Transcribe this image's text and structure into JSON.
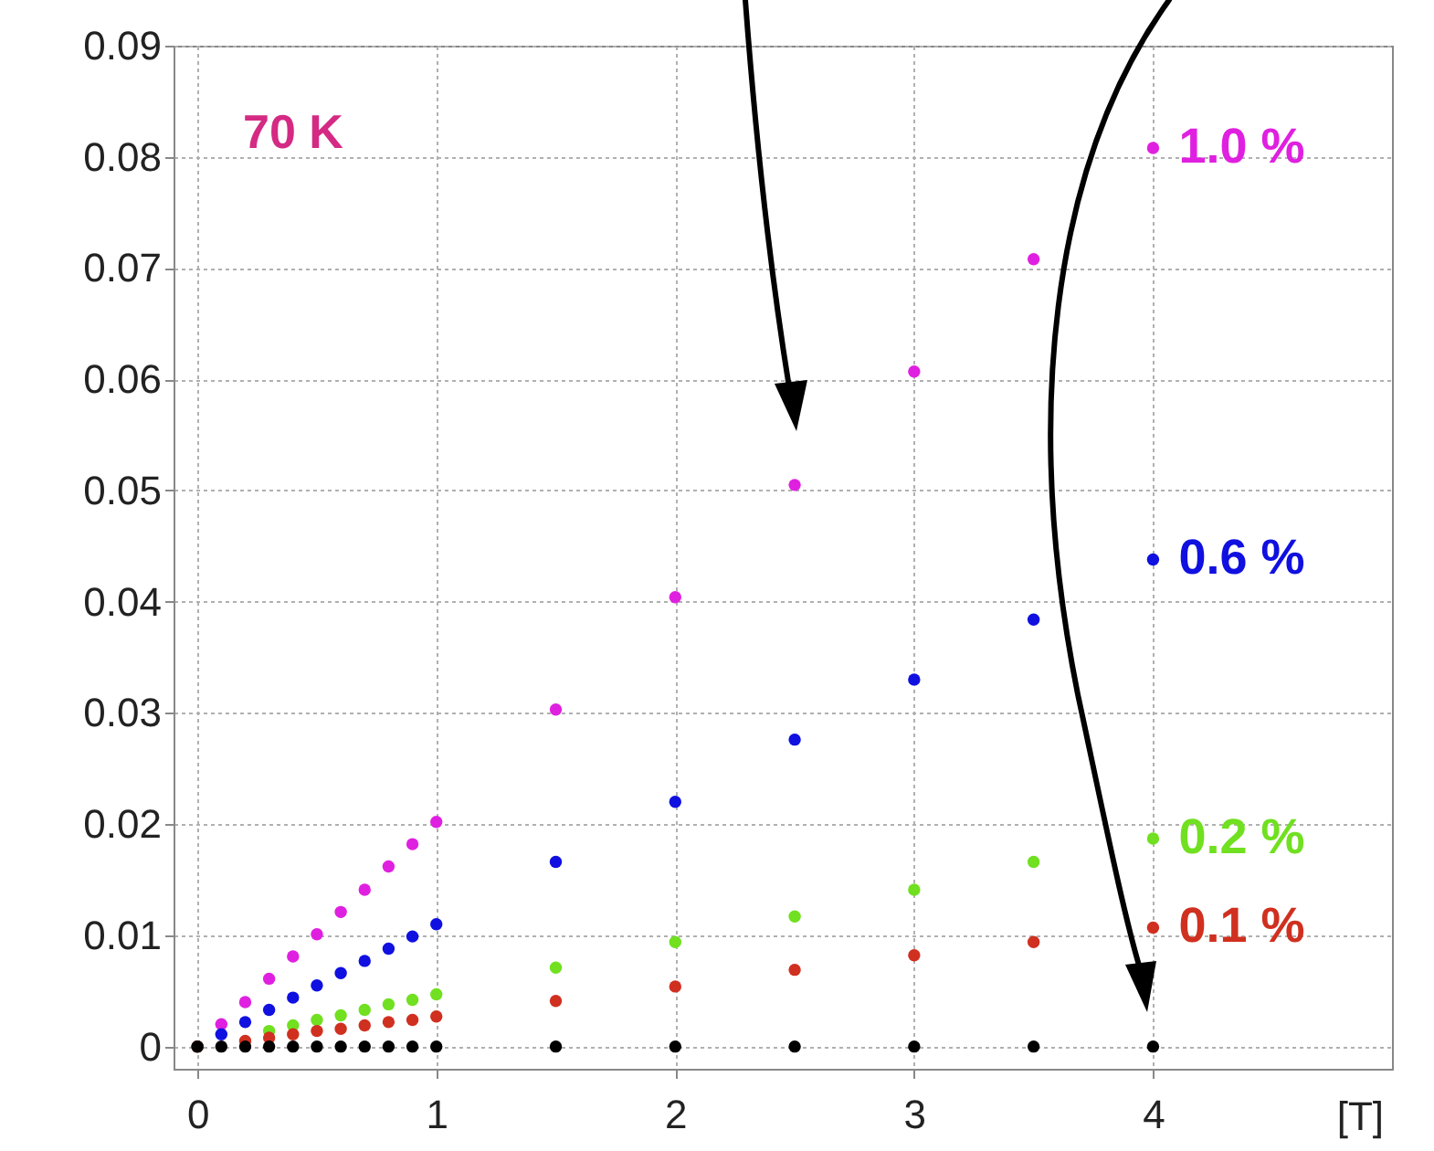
{
  "chart_data": {
    "type": "scatter",
    "xlabel": "[T]",
    "annotations": [
      "70 K"
    ],
    "x": [
      0,
      0.1,
      0.2,
      0.3,
      0.4,
      0.5,
      0.6,
      0.7,
      0.8,
      0.9,
      1,
      1.5,
      2,
      2.5,
      3,
      3.5,
      4
    ],
    "xlim": [
      -0.1,
      5
    ],
    "xticks": [
      0,
      1,
      2,
      3,
      4
    ],
    "ylim": [
      -0.002,
      0.09
    ],
    "yticks": [
      0,
      0.01,
      0.02,
      0.03,
      0.04,
      0.05,
      0.06,
      0.07,
      0.08,
      0.09
    ],
    "grid": true,
    "legend": false,
    "marker": "circle",
    "series": [
      {
        "name": "1.0 %",
        "color": "#e020e0",
        "values": [
          0,
          0.002,
          0.004,
          0.0061,
          0.0081,
          0.0101,
          0.0121,
          0.0141,
          0.0162,
          0.0182,
          0.0202,
          0.0303,
          0.0404,
          0.0505,
          0.0607,
          0.0708,
          0.0808
        ]
      },
      {
        "name": "0.6 %",
        "color": "#1010e0",
        "values": [
          0,
          0.0011,
          0.0022,
          0.0033,
          0.0044,
          0.0055,
          0.0066,
          0.0077,
          0.0088,
          0.0099,
          0.011,
          0.0166,
          0.022,
          0.0276,
          0.033,
          0.0384,
          0.0438
        ]
      },
      {
        "name": "0.2 %",
        "color": "#70e020",
        "values": [
          0,
          null,
          null,
          0.0014,
          0.0019,
          0.0024,
          0.0028,
          0.0033,
          0.0038,
          0.0042,
          0.0047,
          0.0071,
          0.0094,
          0.0117,
          0.0141,
          0.0166,
          0.0187
        ]
      },
      {
        "name": "0.1 %",
        "color": "#d03020",
        "values": [
          0,
          null,
          0.0005,
          0.0008,
          0.0011,
          0.0014,
          0.0016,
          0.0019,
          0.0022,
          0.0024,
          0.0027,
          0.0041,
          0.0054,
          0.0069,
          0.0082,
          0.0094,
          0.0107
        ]
      },
      {
        "color": "#000000",
        "values": [
          0,
          0,
          0,
          0,
          0,
          0,
          0,
          0,
          0,
          0,
          0,
          0,
          0,
          0,
          0,
          0,
          0
        ]
      }
    ]
  }
}
